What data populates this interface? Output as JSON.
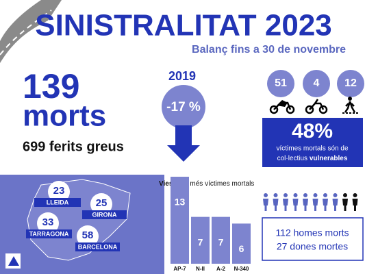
{
  "header": {
    "title": "SINISTRALITAT 2023",
    "subtitle": "Balanç fins a 30 de novembre"
  },
  "deaths": {
    "number": "139",
    "label": "morts",
    "injured": "699 ferits greus"
  },
  "comparison": {
    "year": "2019",
    "change": "-17 %"
  },
  "vulnerable": {
    "groups": [
      "51",
      "4",
      "12"
    ],
    "percent": "48%",
    "line1": "víctimes mortals són de",
    "line2": "col·lectius",
    "emphasis": "vulnerables"
  },
  "provinces": [
    {
      "count": "23",
      "name": "LLEIDA"
    },
    {
      "count": "25",
      "name": "GIRONA"
    },
    {
      "count": "33",
      "name": "TARRAGONA"
    },
    {
      "count": "58",
      "name": "BARCELONA"
    }
  ],
  "gender": {
    "men": "112 homes morts",
    "women": "27 dones mortes"
  },
  "chart_data": {
    "type": "bar",
    "title_bold": "Vies",
    "title": "amb més víctimes mortals",
    "categories": [
      "AP-7",
      "N-II",
      "A-2",
      "N-340"
    ],
    "values": [
      13,
      7,
      7,
      6
    ],
    "color": "#7d84cf"
  }
}
